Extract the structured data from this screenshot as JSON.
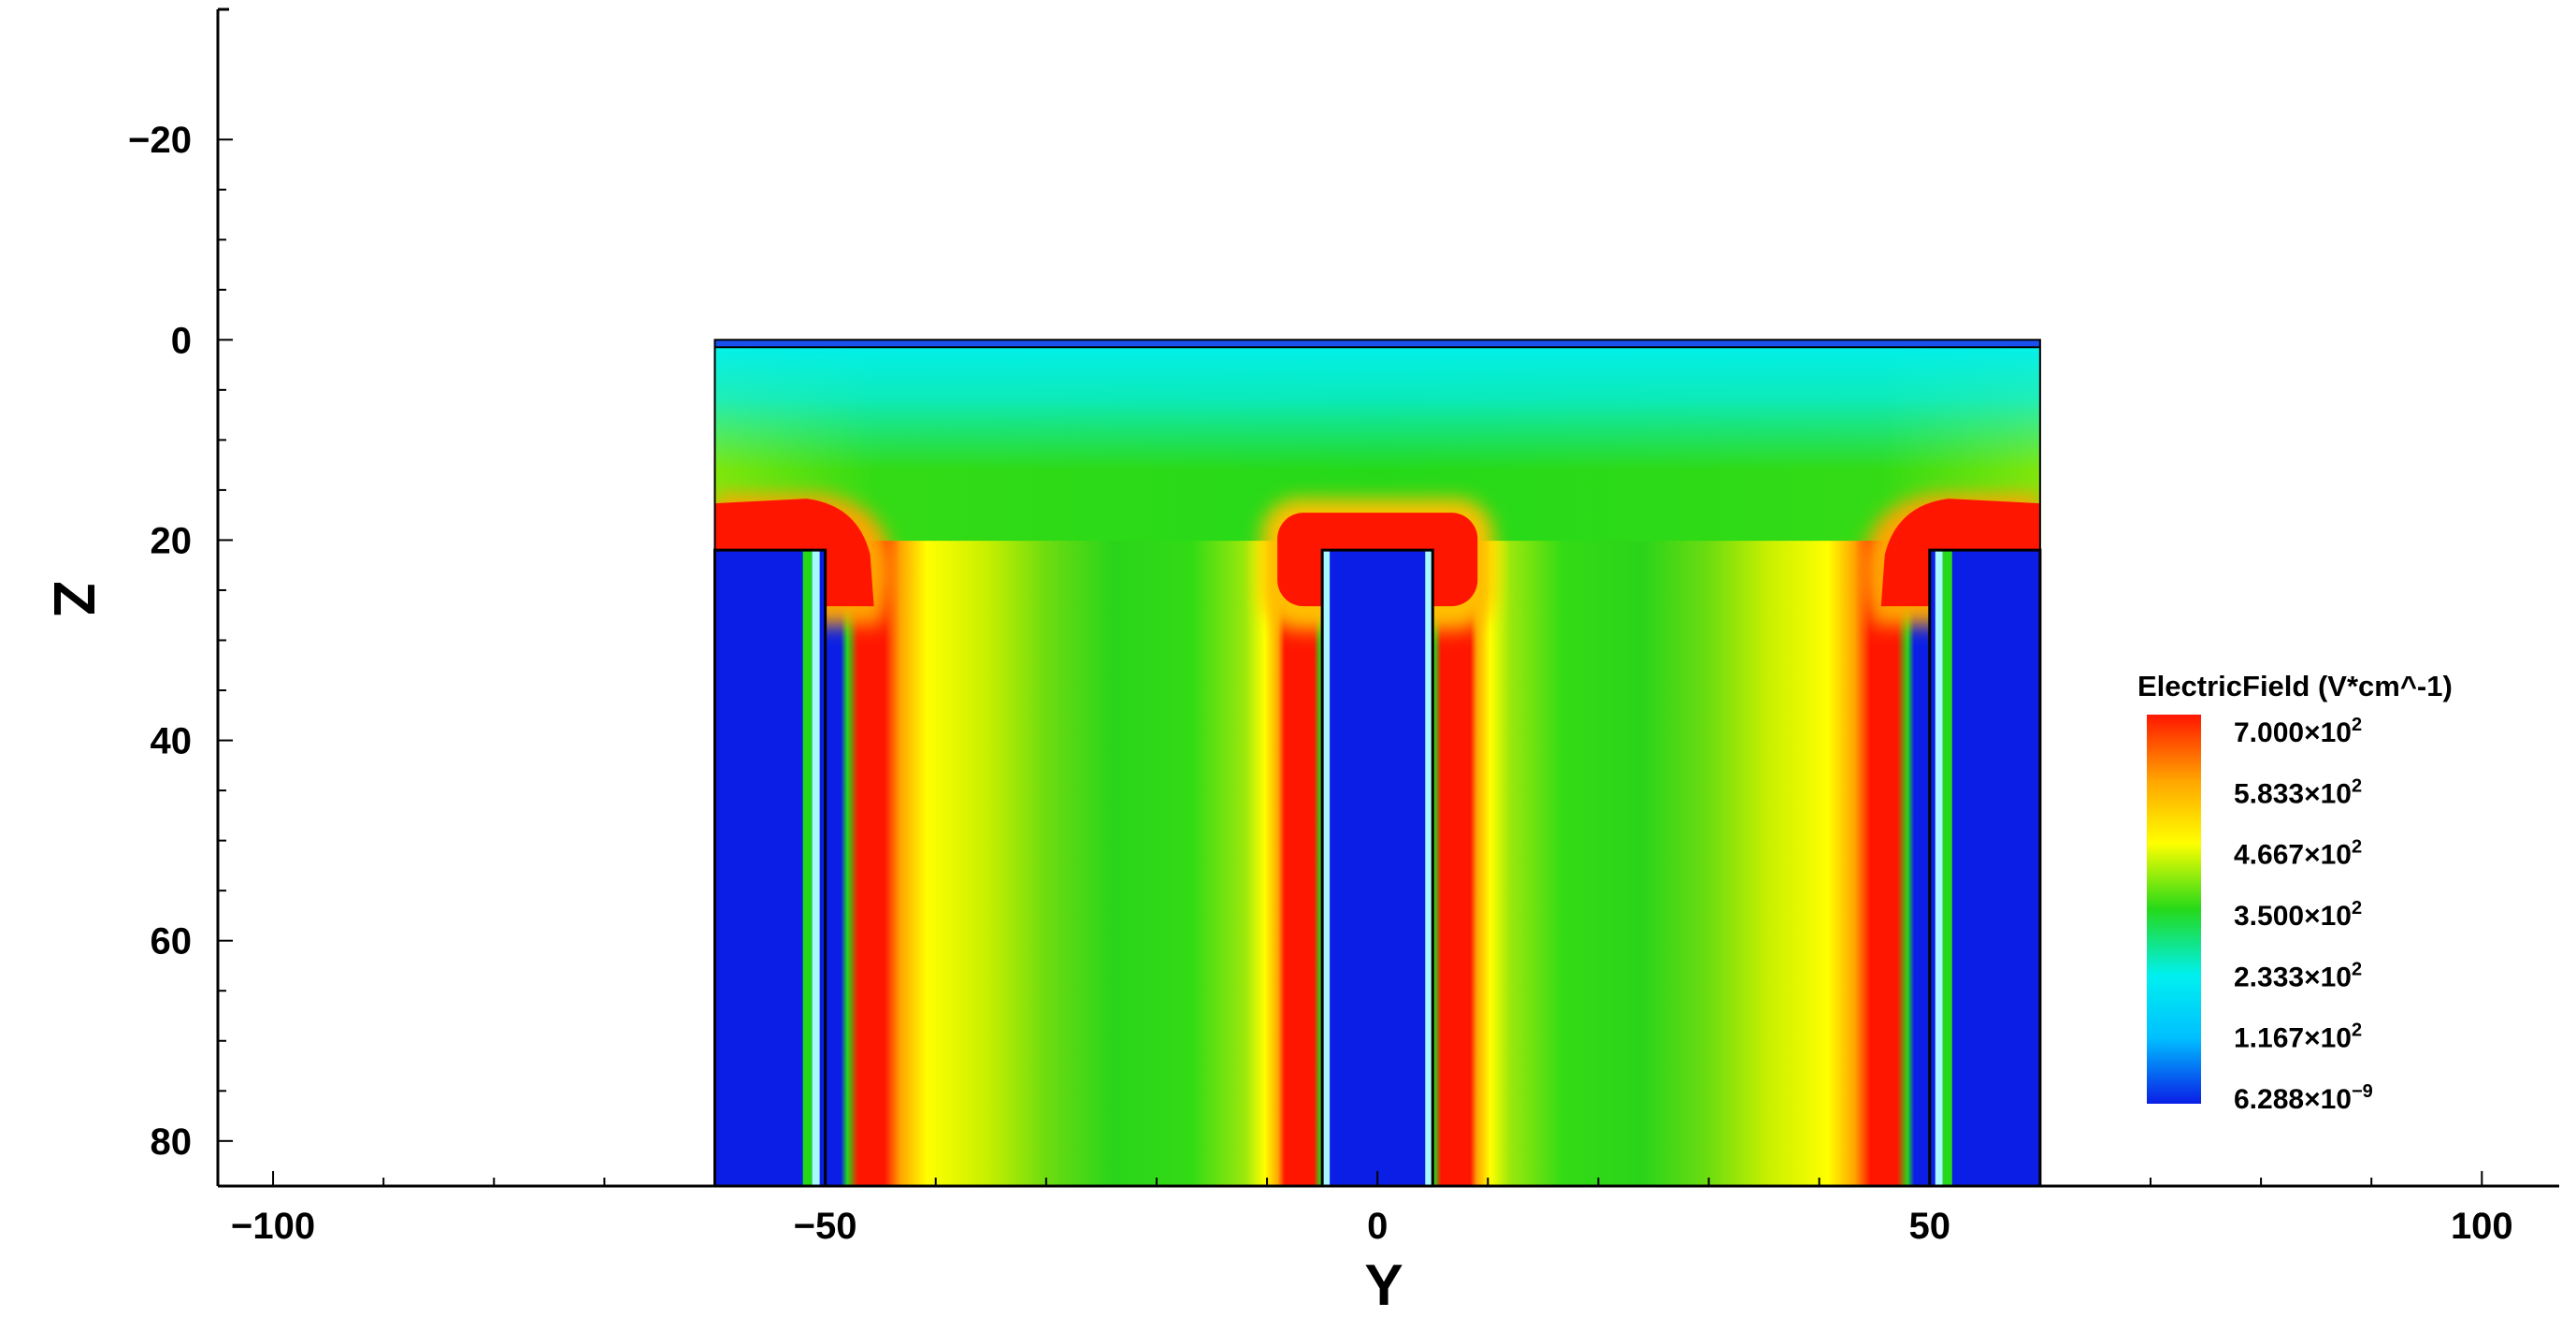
{
  "chart_data": {
    "type": "heatmap",
    "title": "",
    "xlabel": "Y",
    "ylabel": "Z",
    "xlim": [
      -105,
      107
    ],
    "ylim": [
      -33,
      84.5
    ],
    "y_inverted": true,
    "grid": false,
    "x_ticks": [
      {
        "value": -100,
        "label": "−100"
      },
      {
        "value": -50,
        "label": "−50"
      },
      {
        "value": 0,
        "label": "0"
      },
      {
        "value": 50,
        "label": "50"
      },
      {
        "value": 100,
        "label": "100"
      }
    ],
    "y_ticks": [
      {
        "value": -20,
        "label": "−20"
      },
      {
        "value": 0,
        "label": "0"
      },
      {
        "value": 20,
        "label": "20"
      },
      {
        "value": 40,
        "label": "40"
      },
      {
        "value": 60,
        "label": "60"
      },
      {
        "value": 80,
        "label": "80"
      }
    ],
    "field_domain": {
      "y_range": [
        -60,
        60
      ],
      "z_range": [
        0,
        84.5
      ]
    },
    "conductors": [
      {
        "name": "left",
        "y_range": [
          -60,
          -50
        ],
        "z_top": 21
      },
      {
        "name": "center",
        "y_range": [
          -5,
          5
        ],
        "z_top": 21
      },
      {
        "name": "right",
        "y_range": [
          50,
          60
        ],
        "z_top": 21
      }
    ],
    "colorbar": {
      "title": "ElectricField (V*cm^-1)",
      "placement": "right",
      "min": 6.288e-09,
      "max": 700,
      "colors": [
        "#0a1ee6",
        "#00c0ff",
        "#00f0f0",
        "#25d919",
        "#ffff00",
        "#ffa500",
        "#ff1600"
      ],
      "tick_labels": [
        {
          "mantissa": "7.000×10",
          "exp": "2"
        },
        {
          "mantissa": "5.833×10",
          "exp": "2"
        },
        {
          "mantissa": "4.667×10",
          "exp": "2"
        },
        {
          "mantissa": "3.500×10",
          "exp": "2"
        },
        {
          "mantissa": "2.333×10",
          "exp": "2"
        },
        {
          "mantissa": "1.167×10",
          "exp": "2"
        },
        {
          "mantissa": "6.288×10",
          "exp": "−9"
        }
      ]
    }
  }
}
